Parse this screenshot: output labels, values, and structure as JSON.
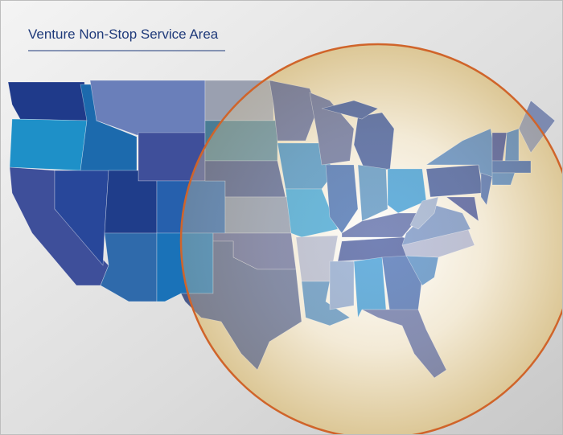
{
  "title": "Venture Non-Stop Service Area"
}
